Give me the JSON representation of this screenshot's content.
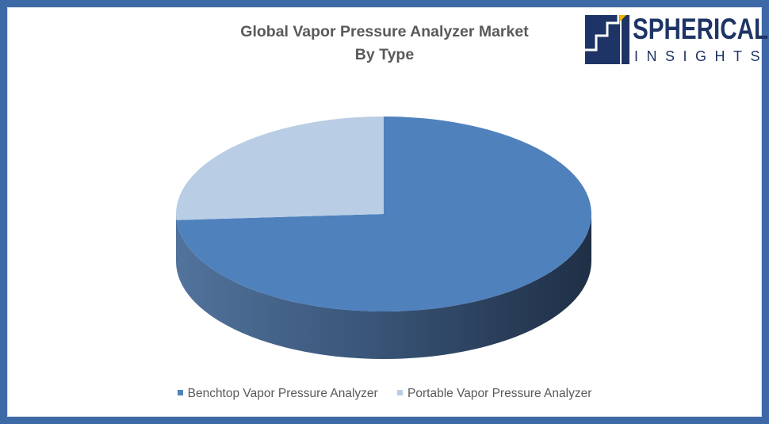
{
  "chart_data": {
    "type": "pie",
    "title": "Global Vapor Pressure Analyzer Market By Type",
    "title_lines": [
      "Global Vapor Pressure Analyzer Market",
      "By Type"
    ],
    "categories": [
      "Benchtop Vapor Pressure Analyzer",
      "Portable Vapor Pressure Analyzer"
    ],
    "values": [
      74,
      26
    ],
    "colors": [
      "#4f81bd",
      "#b9cde5"
    ],
    "three_d": true,
    "legend_position": "bottom",
    "data_labels": false
  },
  "logo": {
    "main": "SPHERICAL",
    "sub": "INSIGHTS",
    "color": "#1f3466"
  },
  "frame": {
    "border_color": "#3d6aa6"
  }
}
